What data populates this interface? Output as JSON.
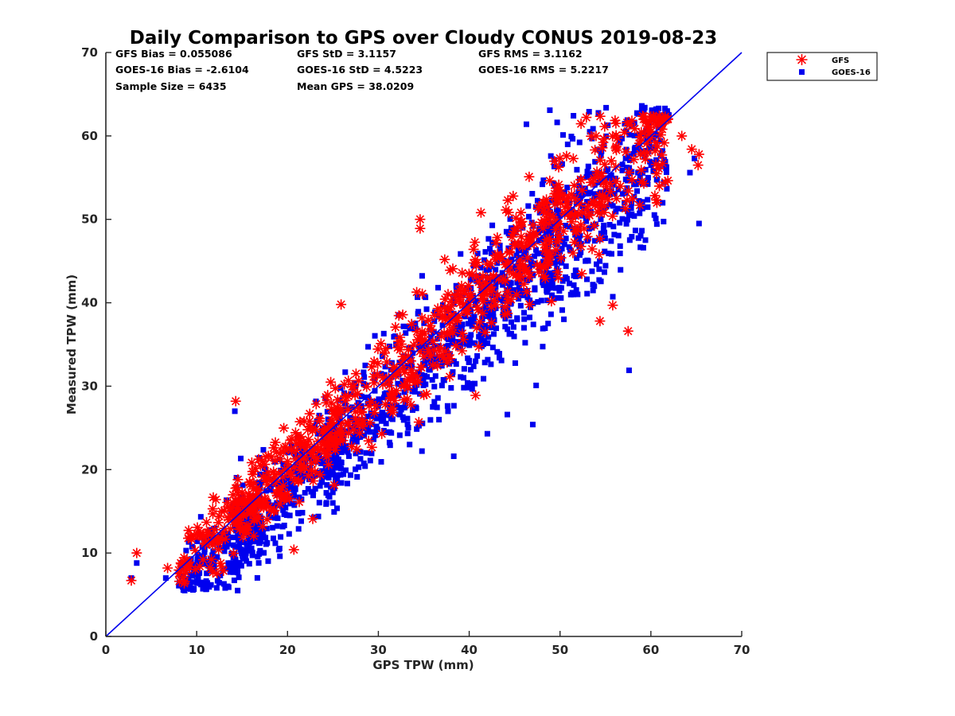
{
  "chart_data": {
    "type": "scatter",
    "title": "Daily Comparison to GPS over Cloudy CONUS 2019-08-23",
    "xlabel": "GPS TPW (mm)",
    "ylabel": "Measured TPW (mm)",
    "xlim": [
      0,
      70
    ],
    "ylim": [
      0,
      70
    ],
    "xticks": [
      0,
      10,
      20,
      30,
      40,
      50,
      60,
      70
    ],
    "yticks": [
      0,
      10,
      20,
      30,
      40,
      50,
      60,
      70
    ],
    "grid": false,
    "legend_position": "outside-top-right",
    "reference_line": {
      "name": "1:1 line",
      "x": [
        0,
        70
      ],
      "y": [
        0,
        70
      ],
      "color": "#0000ee"
    },
    "stats": {
      "gfs_bias": "GFS Bias = 0.055086",
      "goes_bias": "GOES-16 Bias = -2.6104",
      "sample_size": "Sample Size = 6435",
      "gfs_std": "GFS StD = 3.1157",
      "goes_std": "GOES-16 StD = 4.5223",
      "mean_gps": "Mean GPS = 38.0209",
      "gfs_rms": "GFS RMS = 3.1162",
      "goes_rms": "GOES-16 RMS = 5.2217"
    },
    "series": [
      {
        "name": "GFS",
        "marker": "asterisk",
        "color": "#ff0000",
        "sample_size": 6435,
        "bias": 0.055086,
        "std": 3.1157,
        "outliers": [
          [
            2.8,
            6.7
          ],
          [
            3.4,
            10.0
          ],
          [
            6.8,
            8.2
          ],
          [
            14.3,
            28.2
          ],
          [
            34.6,
            50.0
          ],
          [
            34.6,
            48.9
          ],
          [
            57.5,
            36.6
          ],
          [
            65.2,
            56.5
          ],
          [
            65.3,
            57.8
          ],
          [
            64.5,
            58.4
          ],
          [
            63.4,
            60.0
          ],
          [
            41.3,
            50.8
          ],
          [
            55.8,
            39.7
          ],
          [
            54.4,
            37.8
          ],
          [
            40.7,
            28.9
          ],
          [
            25.9,
            39.8
          ],
          [
            20.7,
            10.4
          ],
          [
            46.6,
            55.1
          ]
        ]
      },
      {
        "name": "GOES-16",
        "marker": "square",
        "color": "#0000ee",
        "sample_size": 6435,
        "bias": -2.6104,
        "std": 4.5223,
        "outliers": [
          [
            2.8,
            7.0
          ],
          [
            3.4,
            8.8
          ],
          [
            6.6,
            7.0
          ],
          [
            14.2,
            27.0
          ],
          [
            57.6,
            31.9
          ],
          [
            65.3,
            49.5
          ],
          [
            64.3,
            55.6
          ],
          [
            64.8,
            57.3
          ],
          [
            38.3,
            21.6
          ],
          [
            42.0,
            24.3
          ],
          [
            47.0,
            25.4
          ],
          [
            44.2,
            26.6
          ],
          [
            10.9,
            6.0
          ],
          [
            13.0,
            6.3
          ],
          [
            53.2,
            62.9
          ],
          [
            59.0,
            63.6
          ],
          [
            46.3,
            61.4
          ]
        ]
      }
    ]
  }
}
